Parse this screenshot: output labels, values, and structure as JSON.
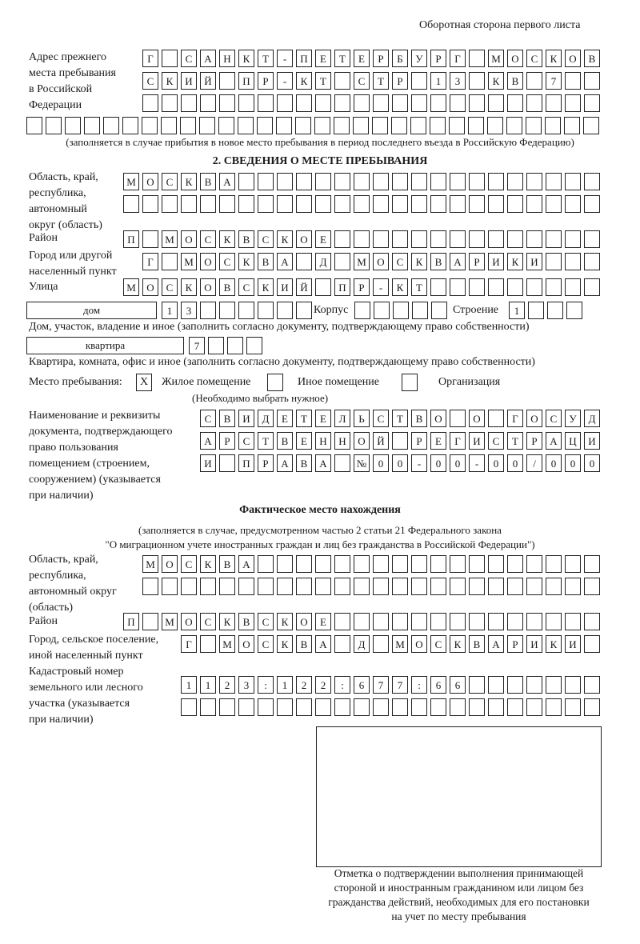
{
  "header": {
    "page_side": "Оборотная сторона первого листа"
  },
  "previous_address": {
    "label": [
      "Адрес прежнего",
      "места пребывания",
      "в Российской",
      "Федерации"
    ],
    "rows": [
      "Г САНКТ-ПЕТЕРБУРГ МОСКОВ",
      "СКИЙ ПР-КТ СТР 13 КВ 7",
      "",
      ""
    ],
    "note": "(заполняется в случае прибытия в новое место пребывания в период последнего въезда в Российскую Федерацию)"
  },
  "stay_place": {
    "section_title": "2. СВЕДЕНИЯ О МЕСТЕ ПРЕБЫВАНИЯ",
    "region": {
      "label": [
        "Область, край,",
        "республика,",
        "автономный",
        "округ (область)"
      ],
      "rows": [
        "МОСКВА",
        ""
      ]
    },
    "district": {
      "label": "Район",
      "row": "П МОСКВСКОЕ"
    },
    "city": {
      "label": [
        "Город или другой",
        "населенный пункт"
      ],
      "row": "Г МОСКВА Д МОСКВАРИКИ"
    },
    "street": {
      "label": "Улица",
      "row": "МОСКОВСКИЙ ПР-КТ"
    },
    "house": {
      "type": "дом",
      "number": "13",
      "korpus_label": "Корпус",
      "korpus": "",
      "building_label": "Строение",
      "building": "1",
      "note": "Дом, участок, владение и иное (заполнить согласно документу, подтверждающему право собственности)"
    },
    "apartment": {
      "type": "квартира",
      "number": "7",
      "note": "Квартира, комната, офис и иное (заполнить согласно документу, подтверждающему право собственности)"
    },
    "place_type": {
      "label": "Место пребывания:",
      "options": [
        {
          "label": "Жилое помещение",
          "mark": "X"
        },
        {
          "label": "Иное помещение",
          "mark": ""
        },
        {
          "label": "Организация",
          "mark": ""
        }
      ],
      "hint": "(Необходимо выбрать нужное)"
    },
    "document": {
      "label": [
        "Наименование и реквизиты",
        "документа, подтверждающего",
        "право пользования",
        "помещением (строением,",
        "сооружением) (указывается",
        "при наличии)"
      ],
      "rows": [
        "СВИДЕТЕЛЬСТВО О ГОСУД",
        "АРСТВЕННОЙ РЕГИСТРАЦИ",
        "И ПРАВА №00-00-00/000"
      ]
    }
  },
  "actual_location": {
    "title": "Фактическое место нахождения",
    "note": [
      "(заполняется в случае, предусмотренном частью 2 статьи 21 Федерального закона",
      "\"О миграционном учете иностранных граждан и лиц без гражданства в Российской Федерации\")"
    ],
    "region": {
      "label": [
        "Область, край,",
        "республика,",
        "автономный округ",
        "(область)"
      ],
      "rows": [
        "МОСКВА",
        ""
      ]
    },
    "district": {
      "label": "Район",
      "row": "П МОСКВСКОЕ"
    },
    "city": {
      "label": [
        "Город, сельское поселение,",
        "иной населенный пункт"
      ],
      "row": "Г МОСКВА Д МОСКВАРИКИ"
    },
    "cadastral": {
      "label": [
        "Кадастровый номер",
        "земельного или лесного",
        "участка (указывается",
        "при наличии)"
      ],
      "rows": [
        "1123:122:677:66",
        ""
      ]
    }
  },
  "confirmation": {
    "caption": [
      "Отметка о подтверждении выполнения принимающей",
      "стороной и иностранным гражданином или лицом без",
      "гражданства действий, необходимых для его постановки",
      "на учет по месту пребывания"
    ]
  }
}
